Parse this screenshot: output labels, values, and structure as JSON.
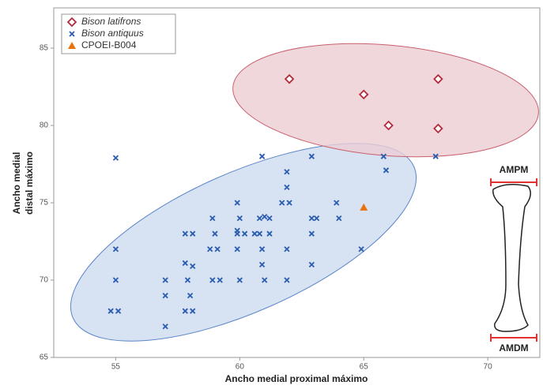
{
  "chart_data": {
    "type": "scatter",
    "xlabel": "Ancho medial proximal máximo",
    "ylabel": [
      "Ancho medial",
      "distal máximo"
    ],
    "xlim": [
      52.5,
      72.1
    ],
    "ylim": [
      65,
      87.6
    ],
    "xticks": [
      55,
      60,
      65,
      70
    ],
    "yticks": [
      65,
      70,
      75,
      80,
      85
    ],
    "legend": "upper left",
    "annotations": [
      "AMPM",
      "AMDM"
    ],
    "series": [
      {
        "name": "Bison latifrons",
        "color": "#b22a3a",
        "marker": "diamond",
        "italic": true,
        "x": [
          62,
          65,
          68,
          66,
          68
        ],
        "values": [
          83,
          82,
          83,
          80,
          79.8
        ]
      },
      {
        "name": "Bison antiquus",
        "color": "#2a5db0",
        "marker": "x",
        "italic": true,
        "x": [
          55,
          55,
          55,
          54.8,
          55.1,
          57,
          57,
          57,
          57.8,
          58.1,
          57.8,
          58.1,
          57.9,
          58,
          57.8,
          58.1,
          58.8,
          59.1,
          58.9,
          59,
          58.9,
          59.2,
          59.9,
          60,
          59.9,
          59.9,
          60.2,
          59.9,
          60,
          60.6,
          60.9,
          60.8,
          61,
          61.2,
          60.8,
          61.2,
          60.9,
          60.9,
          61,
          61.9,
          61.9,
          61.7,
          62,
          61.9,
          61.9,
          62.9,
          62.9,
          63.1,
          62.9,
          62.9,
          63.9,
          64,
          64.9,
          65.8,
          65.9,
          67.9
        ],
        "values": [
          77.9,
          72,
          70,
          68,
          68,
          70,
          69,
          67,
          73,
          73,
          71.1,
          70.9,
          70,
          69,
          68,
          68,
          72,
          72,
          74,
          73,
          70,
          70,
          75,
          74,
          73.2,
          73,
          73,
          72,
          70,
          73,
          78,
          74,
          74.1,
          74,
          73,
          73,
          72,
          71,
          70,
          77,
          76,
          75,
          75,
          72,
          70,
          78,
          74,
          74,
          73,
          71,
          75,
          74,
          72,
          78,
          77.1,
          78
        ]
      },
      {
        "name": "CPOEI-B004",
        "color": "#e8730c",
        "marker": "triangle",
        "italic": false,
        "x": [
          65
        ],
        "values": [
          74.7
        ]
      }
    ]
  }
}
